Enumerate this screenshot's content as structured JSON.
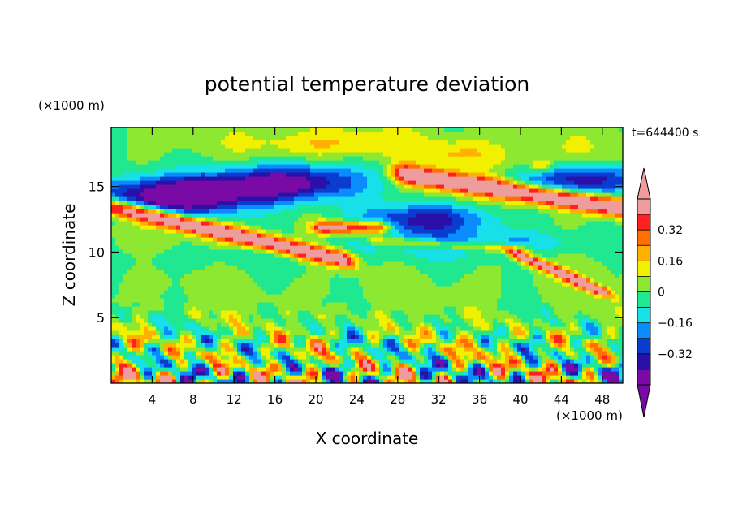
{
  "chart_data": {
    "type": "heatmap",
    "title": "potential temperature deviation",
    "xlabel": "X coordinate",
    "ylabel": "Z coordinate",
    "x_unit": "(×1000 m)",
    "y_unit": "(×1000 m)",
    "time_label": "t=644400 s",
    "xlim": [
      0,
      50
    ],
    "ylim": [
      0,
      19.5
    ],
    "x_ticks": [
      4,
      8,
      12,
      16,
      20,
      24,
      28,
      32,
      36,
      40,
      44,
      48
    ],
    "y_ticks": [
      5,
      10,
      15
    ],
    "colorbar": {
      "levels": [
        -0.48,
        -0.4,
        -0.32,
        -0.24,
        -0.16,
        -0.08,
        0,
        0.08,
        0.16,
        0.24,
        0.32,
        0.4,
        0.48
      ],
      "colors": [
        "#7a0aa6",
        "#2a10a8",
        "#0a3ccf",
        "#0a8cff",
        "#18e0e8",
        "#20e890",
        "#8ce830",
        "#f0f000",
        "#ffb000",
        "#ff7000",
        "#ff2020",
        "#ee9c9c"
      ],
      "under_color": "#7a0aa6",
      "over_color": "#ee9c9c",
      "tick_values": [
        0.32,
        0.16,
        0,
        -0.16,
        -0.32
      ],
      "tick_labels": [
        "0.32",
        "0.16",
        "0",
        "−0.16",
        "−0.32"
      ]
    }
  }
}
